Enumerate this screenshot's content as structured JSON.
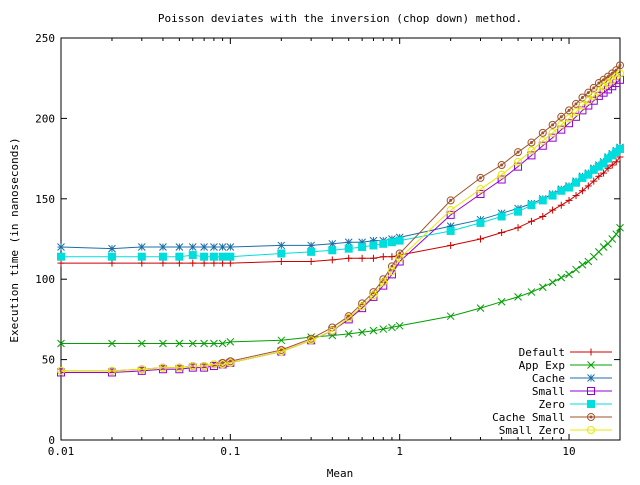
{
  "chart_data": {
    "type": "line",
    "title": "Poisson deviates with the inversion (chop down) method.",
    "xlabel": "Mean",
    "ylabel": "Execution time (in nanoseconds)",
    "x_scale": "log",
    "xlim": [
      0.01,
      20
    ],
    "ylim": [
      0,
      250
    ],
    "x_ticks": [
      0.01,
      0.1,
      1,
      10
    ],
    "x_tick_labels": [
      "0.01",
      "0.1",
      "1",
      "10"
    ],
    "y_ticks": [
      0,
      50,
      100,
      150,
      200,
      250
    ],
    "y_tick_labels": [
      "0",
      "50",
      "100",
      "150",
      "200",
      "250"
    ],
    "grid": false,
    "legend_position": "bottom-right",
    "series": [
      {
        "name": "Default",
        "color": "#cc0000",
        "marker": "plus",
        "x": [
          0.01,
          0.02,
          0.03,
          0.04,
          0.05,
          0.06,
          0.07,
          0.08,
          0.09,
          0.1,
          0.2,
          0.3,
          0.4,
          0.5,
          0.6,
          0.7,
          0.8,
          0.9,
          1,
          2,
          3,
          4,
          5,
          6,
          7,
          8,
          9,
          10,
          11,
          12,
          13,
          14,
          15,
          16,
          17,
          18,
          19,
          20
        ],
        "y": [
          110,
          110,
          110,
          110,
          110,
          110,
          110,
          110,
          110,
          110,
          111,
          111,
          112,
          113,
          113,
          113,
          114,
          114,
          115,
          121,
          125,
          129,
          132,
          136,
          139,
          143,
          146,
          149,
          152,
          155,
          158,
          161,
          164,
          166,
          169,
          171,
          173,
          176
        ]
      },
      {
        "name": "App Exp",
        "color": "#00a000",
        "marker": "x",
        "x": [
          0.01,
          0.02,
          0.03,
          0.04,
          0.05,
          0.06,
          0.07,
          0.08,
          0.09,
          0.1,
          0.2,
          0.3,
          0.4,
          0.5,
          0.6,
          0.7,
          0.8,
          0.9,
          1,
          2,
          3,
          4,
          5,
          6,
          7,
          8,
          9,
          10,
          11,
          12,
          13,
          14,
          15,
          16,
          17,
          18,
          19,
          20
        ],
        "y": [
          60,
          60,
          60,
          60,
          60,
          60,
          60,
          60,
          60,
          61,
          62,
          64,
          65,
          66,
          67,
          68,
          69,
          70,
          71,
          77,
          82,
          86,
          89,
          92,
          95,
          98,
          101,
          103,
          106,
          109,
          111,
          114,
          117,
          120,
          122,
          125,
          128,
          132
        ]
      },
      {
        "name": "Cache",
        "color": "#1b6fa8",
        "marker": "star",
        "x": [
          0.01,
          0.02,
          0.03,
          0.04,
          0.05,
          0.06,
          0.07,
          0.08,
          0.09,
          0.1,
          0.2,
          0.3,
          0.4,
          0.5,
          0.6,
          0.7,
          0.8,
          0.9,
          1,
          2,
          3,
          4,
          5,
          6,
          7,
          8,
          9,
          10,
          11,
          12,
          13,
          14,
          15,
          16,
          17,
          18,
          19,
          20
        ],
        "y": [
          120,
          119,
          120,
          120,
          120,
          120,
          120,
          120,
          120,
          120,
          121,
          121,
          122,
          123,
          123,
          124,
          124,
          125,
          126,
          133,
          137,
          141,
          144,
          147,
          150,
          153,
          156,
          158,
          161,
          164,
          166,
          169,
          171,
          173,
          176,
          178,
          180,
          182
        ]
      },
      {
        "name": "Small",
        "color": "#9400d3",
        "marker": "square-open",
        "x": [
          0.01,
          0.02,
          0.03,
          0.04,
          0.05,
          0.06,
          0.07,
          0.08,
          0.09,
          0.1,
          0.2,
          0.3,
          0.4,
          0.5,
          0.6,
          0.7,
          0.8,
          0.9,
          1,
          2,
          3,
          4,
          5,
          6,
          7,
          8,
          9,
          10,
          11,
          12,
          13,
          14,
          15,
          16,
          17,
          18,
          19,
          20
        ],
        "y": [
          42,
          42,
          43,
          44,
          44,
          45,
          45,
          46,
          47,
          48,
          55,
          62,
          68,
          75,
          82,
          89,
          96,
          103,
          111,
          140,
          153,
          162,
          170,
          177,
          183,
          188,
          193,
          197,
          201,
          205,
          208,
          211,
          214,
          216,
          218,
          220,
          222,
          224
        ]
      },
      {
        "name": "Zero",
        "color": "#00dddd",
        "marker": "square-filled",
        "x": [
          0.01,
          0.02,
          0.03,
          0.04,
          0.05,
          0.06,
          0.07,
          0.08,
          0.09,
          0.1,
          0.2,
          0.3,
          0.4,
          0.5,
          0.6,
          0.7,
          0.8,
          0.9,
          1,
          2,
          3,
          4,
          5,
          6,
          7,
          8,
          9,
          10,
          11,
          12,
          13,
          14,
          15,
          16,
          17,
          18,
          19,
          20
        ],
        "y": [
          114,
          114,
          114,
          114,
          114,
          115,
          114,
          114,
          114,
          114,
          116,
          117,
          118,
          119,
          120,
          121,
          122,
          123,
          124,
          130,
          135,
          139,
          142,
          146,
          149,
          152,
          155,
          157,
          160,
          163,
          165,
          168,
          170,
          172,
          175,
          177,
          179,
          181
        ]
      },
      {
        "name": "Cache Small",
        "color": "#a0522d",
        "marker": "circle-gear",
        "x": [
          0.01,
          0.02,
          0.03,
          0.04,
          0.05,
          0.06,
          0.07,
          0.08,
          0.09,
          0.1,
          0.2,
          0.3,
          0.4,
          0.5,
          0.6,
          0.7,
          0.8,
          0.9,
          1,
          2,
          3,
          4,
          5,
          6,
          7,
          8,
          9,
          10,
          11,
          12,
          13,
          14,
          15,
          16,
          17,
          18,
          19,
          20
        ],
        "y": [
          43,
          43,
          44,
          45,
          45,
          46,
          46,
          47,
          48,
          49,
          56,
          63,
          70,
          77,
          85,
          92,
          100,
          108,
          116,
          149,
          163,
          171,
          179,
          185,
          191,
          196,
          201,
          205,
          209,
          213,
          216,
          219,
          222,
          224,
          226,
          228,
          230,
          233
        ]
      },
      {
        "name": "Small Zero",
        "color": "#e8e800",
        "marker": "circle-open",
        "x": [
          0.01,
          0.02,
          0.03,
          0.04,
          0.05,
          0.06,
          0.07,
          0.08,
          0.09,
          0.1,
          0.2,
          0.3,
          0.4,
          0.5,
          0.6,
          0.7,
          0.8,
          0.9,
          1,
          2,
          3,
          4,
          5,
          6,
          7,
          8,
          9,
          10,
          11,
          12,
          13,
          14,
          15,
          16,
          17,
          18,
          19,
          20
        ],
        "y": [
          43,
          43,
          44,
          45,
          45,
          46,
          46,
          47,
          47,
          48,
          55,
          62,
          68,
          76,
          83,
          90,
          98,
          105,
          113,
          143,
          156,
          165,
          173,
          180,
          186,
          191,
          196,
          200,
          204,
          208,
          211,
          214,
          217,
          220,
          222,
          224,
          226,
          228
        ]
      }
    ]
  }
}
